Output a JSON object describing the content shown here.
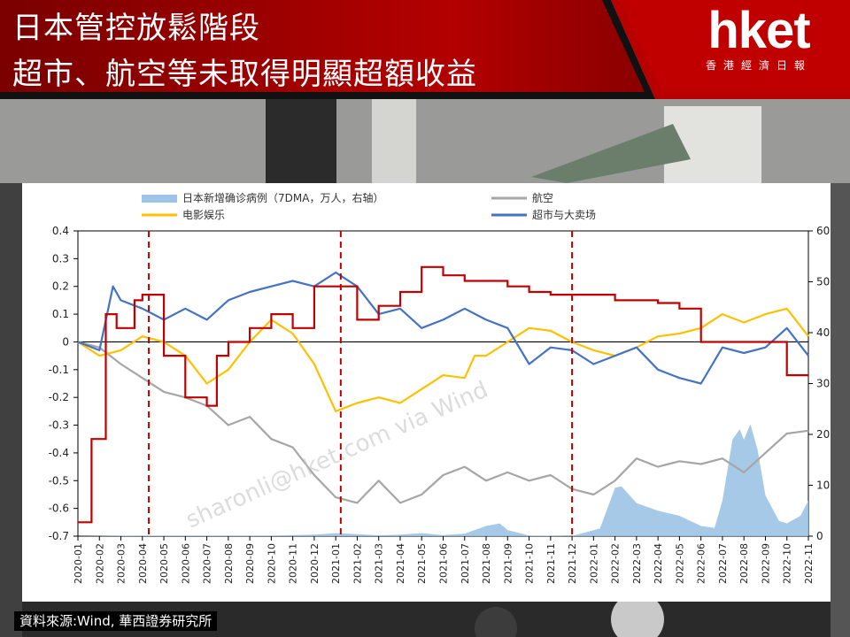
{
  "headline": {
    "line1": "日本管控放鬆階段",
    "line2": "超市、航空等未取得明顯超額收益"
  },
  "logo": {
    "word": "hket",
    "tagline": "香港經濟日報"
  },
  "watermark": "sharonli@hket.com via Wind",
  "source": "資料來源:Wind, 華西證券研究所",
  "colors": {
    "banner_red": "#a40000",
    "supermarket": "#4472c4",
    "aviation": "#a6a6a6",
    "entertainment": "#ffc000",
    "cases": "#9dc3e6",
    "policy": "#c00000"
  },
  "chart_data": {
    "type": "line",
    "legend": {
      "placement": "top",
      "items": [
        "日本新增确诊病例（7DMA，万人，右轴）",
        "航空",
        "电影娱乐",
        "超市与大卖场"
      ]
    },
    "x": {
      "type": "monthly",
      "tick_labels": [
        "2020-01",
        "2020-02",
        "2020-03",
        "2020-04",
        "2020-05",
        "2020-06",
        "2020-07",
        "2020-08",
        "2020-09",
        "2020-10",
        "2020-11",
        "2020-12",
        "2021-01",
        "2021-02",
        "2021-03",
        "2021-04",
        "2021-05",
        "2021-06",
        "2021-07",
        "2021-08",
        "2021-09",
        "2021-10",
        "2021-11",
        "2021-12",
        "2022-01",
        "2022-02",
        "2022-03",
        "2022-04",
        "2022-05",
        "2022-06",
        "2022-07",
        "2022-08",
        "2022-09",
        "2022-10",
        "2022-11"
      ],
      "range": [
        "2020-01",
        "2022-11"
      ]
    },
    "y_left": {
      "range": [
        -0.7,
        0.4
      ],
      "ticks": [
        "0.4",
        "0.3",
        "0.2",
        "0.1",
        "0",
        "-0.1",
        "-0.2",
        "-0.3",
        "-0.4",
        "-0.5",
        "-0.6",
        "-0.7"
      ]
    },
    "y_right": {
      "range": [
        0,
        60
      ],
      "ticks": [
        "60",
        "50",
        "40",
        "30",
        "20",
        "10",
        "0"
      ]
    },
    "vlines": [
      "2020-04-10",
      "2021-01-08",
      "2021-12-01"
    ],
    "series": [
      {
        "name": "日本新增确诊病例（7DMA，万人，右轴）",
        "kind": "area",
        "axis": "right",
        "color": "#9dc3e6",
        "points": [
          [
            "2020-01",
            0
          ],
          [
            "2020-04",
            0.1
          ],
          [
            "2020-07",
            0.1
          ],
          [
            "2020-08",
            0.1
          ],
          [
            "2020-10",
            0.1
          ],
          [
            "2020-12",
            0.3
          ],
          [
            "2021-01",
            0.6
          ],
          [
            "2021-02",
            0.4
          ],
          [
            "2021-03",
            0.15
          ],
          [
            "2021-04",
            0.3
          ],
          [
            "2021-05",
            0.6
          ],
          [
            "2021-06",
            0.2
          ],
          [
            "2021-07",
            0.5
          ],
          [
            "2021-08",
            2.0
          ],
          [
            "2021-08-20",
            2.5
          ],
          [
            "2021-09",
            1.2
          ],
          [
            "2021-10",
            0.1
          ],
          [
            "2021-12",
            0.05
          ],
          [
            "2022-01-10",
            1.5
          ],
          [
            "2022-02",
            9.5
          ],
          [
            "2022-02-10",
            9.8
          ],
          [
            "2022-03",
            6.5
          ],
          [
            "2022-04",
            5.0
          ],
          [
            "2022-05",
            4.0
          ],
          [
            "2022-06",
            2.0
          ],
          [
            "2022-06-20",
            1.6
          ],
          [
            "2022-07",
            7.0
          ],
          [
            "2022-07-15",
            19.0
          ],
          [
            "2022-07-25",
            21.0
          ],
          [
            "2022-08",
            19.0
          ],
          [
            "2022-08-10",
            22.0
          ],
          [
            "2022-08-20",
            17.0
          ],
          [
            "2022-09",
            8.0
          ],
          [
            "2022-09-20",
            3.0
          ],
          [
            "2022-10",
            2.5
          ],
          [
            "2022-10-20",
            4.0
          ],
          [
            "2022-11",
            7.0
          ]
        ]
      },
      {
        "name": "航空",
        "kind": "line",
        "axis": "left",
        "color": "#a6a6a6",
        "points": [
          [
            "2020-01",
            0.0
          ],
          [
            "2020-02",
            -0.02
          ],
          [
            "2020-03",
            -0.08
          ],
          [
            "2020-04",
            -0.13
          ],
          [
            "2020-05",
            -0.18
          ],
          [
            "2020-06",
            -0.2
          ],
          [
            "2020-07",
            -0.23
          ],
          [
            "2020-08",
            -0.3
          ],
          [
            "2020-09",
            -0.27
          ],
          [
            "2020-10",
            -0.35
          ],
          [
            "2020-11",
            -0.38
          ],
          [
            "2020-12",
            -0.48
          ],
          [
            "2021-01",
            -0.56
          ],
          [
            "2021-02",
            -0.58
          ],
          [
            "2021-03",
            -0.5
          ],
          [
            "2021-04",
            -0.58
          ],
          [
            "2021-05",
            -0.55
          ],
          [
            "2021-06",
            -0.48
          ],
          [
            "2021-07",
            -0.45
          ],
          [
            "2021-08",
            -0.5
          ],
          [
            "2021-09",
            -0.47
          ],
          [
            "2021-10",
            -0.5
          ],
          [
            "2021-11",
            -0.48
          ],
          [
            "2021-12",
            -0.53
          ],
          [
            "2022-01",
            -0.55
          ],
          [
            "2022-02",
            -0.5
          ],
          [
            "2022-03",
            -0.42
          ],
          [
            "2022-04",
            -0.45
          ],
          [
            "2022-05",
            -0.43
          ],
          [
            "2022-06",
            -0.44
          ],
          [
            "2022-07",
            -0.42
          ],
          [
            "2022-08",
            -0.47
          ],
          [
            "2022-09",
            -0.4
          ],
          [
            "2022-10",
            -0.33
          ],
          [
            "2022-11",
            -0.32
          ]
        ]
      },
      {
        "name": "电影娱乐",
        "kind": "line",
        "axis": "left",
        "color": "#ffc000",
        "points": [
          [
            "2020-01",
            0.0
          ],
          [
            "2020-02",
            -0.05
          ],
          [
            "2020-03",
            -0.03
          ],
          [
            "2020-04",
            0.02
          ],
          [
            "2020-05",
            0.0
          ],
          [
            "2020-06",
            -0.05
          ],
          [
            "2020-07",
            -0.15
          ],
          [
            "2020-08",
            -0.1
          ],
          [
            "2020-09",
            0.0
          ],
          [
            "2020-10",
            0.08
          ],
          [
            "2020-11",
            0.03
          ],
          [
            "2020-12",
            -0.08
          ],
          [
            "2021-01",
            -0.25
          ],
          [
            "2021-02",
            -0.22
          ],
          [
            "2021-03",
            -0.2
          ],
          [
            "2021-04",
            -0.22
          ],
          [
            "2021-05",
            -0.17
          ],
          [
            "2021-06",
            -0.12
          ],
          [
            "2021-07",
            -0.13
          ],
          [
            "2021-07-15",
            -0.05
          ],
          [
            "2021-08",
            -0.05
          ],
          [
            "2021-09",
            0.0
          ],
          [
            "2021-10",
            0.05
          ],
          [
            "2021-11",
            0.04
          ],
          [
            "2021-12",
            0.0
          ],
          [
            "2022-01",
            -0.03
          ],
          [
            "2022-02",
            -0.05
          ],
          [
            "2022-03",
            -0.02
          ],
          [
            "2022-04",
            0.02
          ],
          [
            "2022-05",
            0.03
          ],
          [
            "2022-06",
            0.05
          ],
          [
            "2022-07",
            0.1
          ],
          [
            "2022-08",
            0.07
          ],
          [
            "2022-09",
            0.1
          ],
          [
            "2022-10",
            0.12
          ],
          [
            "2022-11",
            0.02
          ]
        ]
      },
      {
        "name": "超市与大卖场",
        "kind": "line",
        "axis": "left",
        "color": "#4472c4",
        "points": [
          [
            "2020-01",
            0.0
          ],
          [
            "2020-02",
            -0.03
          ],
          [
            "2020-02-20",
            0.2
          ],
          [
            "2020-03",
            0.15
          ],
          [
            "2020-04",
            0.12
          ],
          [
            "2020-05",
            0.08
          ],
          [
            "2020-06",
            0.12
          ],
          [
            "2020-07",
            0.08
          ],
          [
            "2020-08",
            0.15
          ],
          [
            "2020-09",
            0.18
          ],
          [
            "2020-10",
            0.2
          ],
          [
            "2020-11",
            0.22
          ],
          [
            "2020-12",
            0.2
          ],
          [
            "2021-01",
            0.25
          ],
          [
            "2021-02",
            0.2
          ],
          [
            "2021-03",
            0.1
          ],
          [
            "2021-04",
            0.12
          ],
          [
            "2021-05",
            0.05
          ],
          [
            "2021-06",
            0.08
          ],
          [
            "2021-07",
            0.12
          ],
          [
            "2021-08",
            0.08
          ],
          [
            "2021-09",
            0.05
          ],
          [
            "2021-10",
            -0.08
          ],
          [
            "2021-11",
            -0.02
          ],
          [
            "2021-12",
            -0.03
          ],
          [
            "2022-01",
            -0.08
          ],
          [
            "2022-02",
            -0.05
          ],
          [
            "2022-03",
            -0.02
          ],
          [
            "2022-04",
            -0.1
          ],
          [
            "2022-05",
            -0.13
          ],
          [
            "2022-06",
            -0.15
          ],
          [
            "2022-07",
            -0.02
          ],
          [
            "2022-08",
            -0.04
          ],
          [
            "2022-09",
            -0.02
          ],
          [
            "2022-10",
            0.05
          ],
          [
            "2022-11",
            -0.05
          ]
        ]
      },
      {
        "name": "policy",
        "kind": "step",
        "axis": "left",
        "color": "#c00000",
        "points": [
          [
            "2020-01",
            -0.65
          ],
          [
            "2020-01-20",
            -0.35
          ],
          [
            "2020-02-10",
            0.1
          ],
          [
            "2020-02-25",
            0.05
          ],
          [
            "2020-03-20",
            0.15
          ],
          [
            "2020-04",
            0.17
          ],
          [
            "2020-05",
            -0.05
          ],
          [
            "2020-06",
            -0.2
          ],
          [
            "2020-07",
            -0.23
          ],
          [
            "2020-07-15",
            -0.05
          ],
          [
            "2020-08",
            0.0
          ],
          [
            "2020-09",
            0.05
          ],
          [
            "2020-10",
            0.1
          ],
          [
            "2020-11",
            0.05
          ],
          [
            "2020-12",
            0.2
          ],
          [
            "2021-01",
            0.2
          ],
          [
            "2021-02",
            0.08
          ],
          [
            "2021-03",
            0.13
          ],
          [
            "2021-04",
            0.18
          ],
          [
            "2021-05",
            0.27
          ],
          [
            "2021-06",
            0.24
          ],
          [
            "2021-07",
            0.22
          ],
          [
            "2021-08",
            0.22
          ],
          [
            "2021-09",
            0.2
          ],
          [
            "2021-10",
            0.18
          ],
          [
            "2021-11",
            0.17
          ],
          [
            "2021-12",
            0.17
          ],
          [
            "2022-01",
            0.17
          ],
          [
            "2022-02",
            0.15
          ],
          [
            "2022-03",
            0.15
          ],
          [
            "2022-04",
            0.14
          ],
          [
            "2022-05",
            0.12
          ],
          [
            "2022-06",
            0.0
          ],
          [
            "2022-07",
            0.0
          ],
          [
            "2022-08",
            0.0
          ],
          [
            "2022-09",
            0.0
          ],
          [
            "2022-10",
            -0.12
          ],
          [
            "2022-11",
            -0.12
          ]
        ]
      }
    ]
  }
}
